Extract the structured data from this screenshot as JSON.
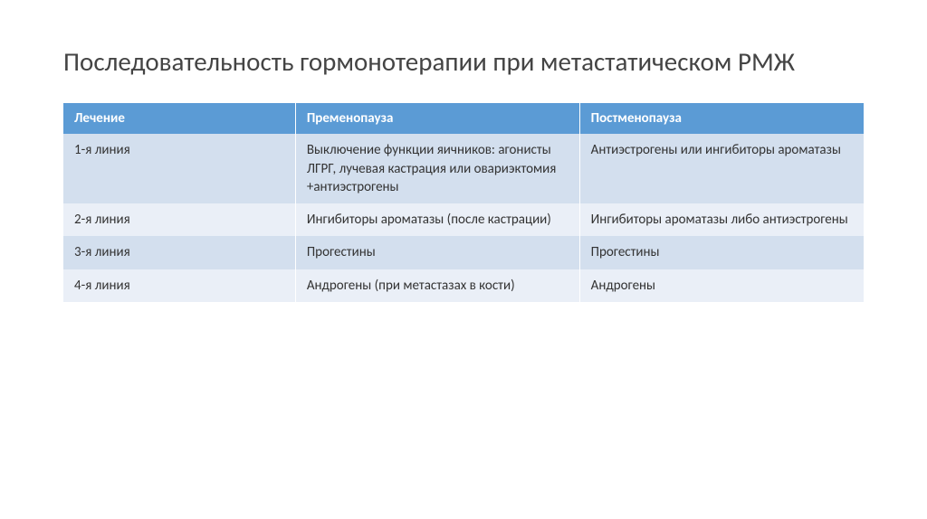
{
  "title": "Последовательность гормонотерапии при метастатическом РМЖ",
  "table": {
    "type": "table",
    "header_bg": "#5b9bd5",
    "header_color": "#ffffff",
    "row_colors": [
      "#d3dfee",
      "#eaeff7"
    ],
    "text_color": "#333333",
    "title_color": "#444444",
    "title_fontsize": 29,
    "cell_fontsize": 15,
    "columns": [
      {
        "label": "Лечение",
        "width": "29%"
      },
      {
        "label": "Пременопауза",
        "width": "35.5%"
      },
      {
        "label": "Постменопауза",
        "width": "35.5%"
      }
    ],
    "rows": [
      [
        "1-я линия",
        "Выключение функции яичников: агонисты ЛГРГ, лучевая кастрация или овариэктомия +антиэстрогены",
        "Антиэстрогены или ингибиторы ароматазы"
      ],
      [
        "2-я линия",
        "Ингибиторы ароматазы (после кастрации)",
        "Ингибиторы ароматазы либо антиэстрогены"
      ],
      [
        "3-я линия",
        "Прогестины",
        "Прогестины"
      ],
      [
        "4-я линия",
        "Андрогены (при метастазах в кости)",
        "Андрогены"
      ]
    ]
  }
}
